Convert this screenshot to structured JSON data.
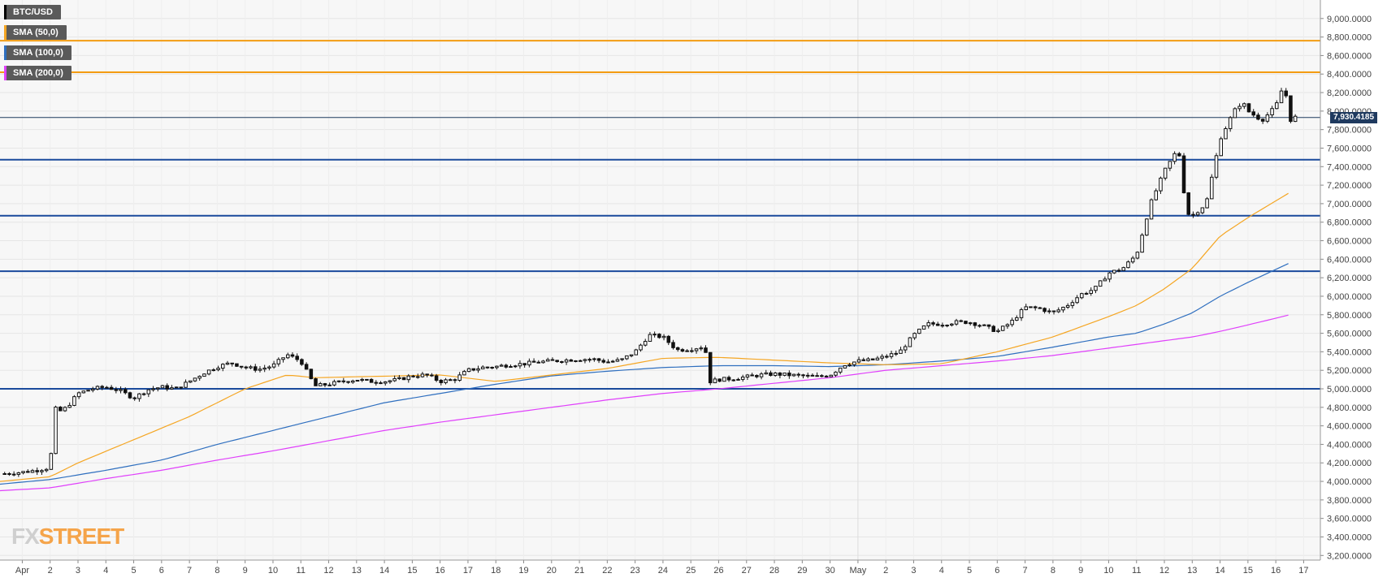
{
  "legend": [
    {
      "label": "BTC/USD",
      "color": "#000000"
    },
    {
      "label": "SMA (50,0)",
      "color": "#f5a623"
    },
    {
      "label": "SMA (100,0)",
      "color": "#2f6fbf"
    },
    {
      "label": "SMA (200,0)",
      "color": "#e040fb"
    }
  ],
  "logo": {
    "fx": "FX",
    "street": "STREET"
  },
  "current_price_label": "7,930.4185",
  "chart_data": {
    "type": "candlestick",
    "title": "",
    "ylim": [
      3150,
      9200
    ],
    "y_ticks": [
      3200,
      3400,
      3600,
      3800,
      4000,
      4200,
      4400,
      4600,
      4800,
      5000,
      5200,
      5400,
      5600,
      5800,
      6000,
      6200,
      6400,
      6600,
      6800,
      7000,
      7200,
      7400,
      7600,
      7800,
      8000,
      8200,
      8400,
      8600,
      8800,
      9000
    ],
    "y_tick_labels": [
      "3,200.0000",
      "3,400.0000",
      "3,600.0000",
      "3,800.0000",
      "4,000.0000",
      "4,200.0000",
      "4,400.0000",
      "4,600.0000",
      "4,800.0000",
      "5,000.0000",
      "5,200.0000",
      "5,400.0000",
      "5,600.0000",
      "5,800.0000",
      "6,000.0000",
      "6,200.0000",
      "6,400.0000",
      "6,600.0000",
      "6,800.0000",
      "7,000.0000",
      "7,200.0000",
      "7,400.0000",
      "7,600.0000",
      "7,800.0000",
      "8,000.0000",
      "8,200.0000",
      "8,400.0000",
      "8,600.0000",
      "8,800.0000",
      "9,000.0000"
    ],
    "x_ticks": [
      {
        "day": 0,
        "label": "Apr"
      },
      {
        "day": 1,
        "label": "2"
      },
      {
        "day": 2,
        "label": "3"
      },
      {
        "day": 3,
        "label": "4"
      },
      {
        "day": 4,
        "label": "5"
      },
      {
        "day": 5,
        "label": "6"
      },
      {
        "day": 6,
        "label": "7"
      },
      {
        "day": 7,
        "label": "8"
      },
      {
        "day": 8,
        "label": "9"
      },
      {
        "day": 9,
        "label": "10"
      },
      {
        "day": 10,
        "label": "11"
      },
      {
        "day": 11,
        "label": "12"
      },
      {
        "day": 12,
        "label": "13"
      },
      {
        "day": 13,
        "label": "14"
      },
      {
        "day": 14,
        "label": "15"
      },
      {
        "day": 15,
        "label": "16"
      },
      {
        "day": 16,
        "label": "17"
      },
      {
        "day": 17,
        "label": "18"
      },
      {
        "day": 18,
        "label": "19"
      },
      {
        "day": 19,
        "label": "20"
      },
      {
        "day": 20,
        "label": "21"
      },
      {
        "day": 21,
        "label": "22"
      },
      {
        "day": 22,
        "label": "23"
      },
      {
        "day": 23,
        "label": "24"
      },
      {
        "day": 24,
        "label": "25"
      },
      {
        "day": 25,
        "label": "26"
      },
      {
        "day": 26,
        "label": "27"
      },
      {
        "day": 27,
        "label": "28"
      },
      {
        "day": 28,
        "label": "29"
      },
      {
        "day": 29,
        "label": "30"
      },
      {
        "day": 30,
        "label": "May"
      },
      {
        "day": 31,
        "label": "2"
      },
      {
        "day": 32,
        "label": "3"
      },
      {
        "day": 33,
        "label": "4"
      },
      {
        "day": 34,
        "label": "5"
      },
      {
        "day": 35,
        "label": "6"
      },
      {
        "day": 36,
        "label": "7"
      },
      {
        "day": 37,
        "label": "8"
      },
      {
        "day": 38,
        "label": "9"
      },
      {
        "day": 39,
        "label": "10"
      },
      {
        "day": 40,
        "label": "11"
      },
      {
        "day": 41,
        "label": "12"
      },
      {
        "day": 42,
        "label": "13"
      },
      {
        "day": 43,
        "label": "14"
      },
      {
        "day": 44,
        "label": "15"
      },
      {
        "day": 45,
        "label": "16"
      },
      {
        "day": 46,
        "label": "17"
      }
    ],
    "x_range_days": [
      -0.8,
      46.6
    ],
    "horizontal_levels": [
      {
        "value": 8760,
        "color": "#f39c12"
      },
      {
        "value": 8420,
        "color": "#f39c12"
      },
      {
        "value": 7475,
        "color": "#1a4a9c"
      },
      {
        "value": 6870,
        "color": "#1a4a9c"
      },
      {
        "value": 6270,
        "color": "#1a4a9c"
      },
      {
        "value": 5000,
        "color": "#1a4a9c"
      }
    ],
    "current_price": 7930.4185,
    "price_path": [
      [
        -0.8,
        4080
      ],
      [
        0,
        4100
      ],
      [
        0.5,
        4120
      ],
      [
        1,
        4150
      ],
      [
        1.15,
        4800
      ],
      [
        1.3,
        4750
      ],
      [
        1.6,
        4800
      ],
      [
        2,
        4950
      ],
      [
        2.5,
        5000
      ],
      [
        3,
        5020
      ],
      [
        3.5,
        4980
      ],
      [
        4,
        4900
      ],
      [
        4.5,
        4990
      ],
      [
        5,
        5020
      ],
      [
        5.5,
        5000
      ],
      [
        6,
        5080
      ],
      [
        6.5,
        5170
      ],
      [
        7,
        5240
      ],
      [
        7.5,
        5280
      ],
      [
        8,
        5230
      ],
      [
        8.5,
        5210
      ],
      [
        9,
        5250
      ],
      [
        9.5,
        5370
      ],
      [
        10,
        5300
      ],
      [
        10.5,
        5030
      ],
      [
        11,
        5050
      ],
      [
        11.5,
        5080
      ],
      [
        12,
        5100
      ],
      [
        12.5,
        5080
      ],
      [
        13,
        5080
      ],
      [
        13.5,
        5100
      ],
      [
        14,
        5140
      ],
      [
        14.5,
        5150
      ],
      [
        15,
        5080
      ],
      [
        15.5,
        5100
      ],
      [
        16,
        5200
      ],
      [
        16.5,
        5230
      ],
      [
        17,
        5240
      ],
      [
        17.5,
        5260
      ],
      [
        18,
        5270
      ],
      [
        18.5,
        5290
      ],
      [
        19,
        5300
      ],
      [
        19.5,
        5310
      ],
      [
        20,
        5320
      ],
      [
        20.5,
        5320
      ],
      [
        21,
        5290
      ],
      [
        21.5,
        5310
      ],
      [
        22,
        5400
      ],
      [
        22.5,
        5580
      ],
      [
        23,
        5560
      ],
      [
        23.5,
        5420
      ],
      [
        24,
        5430
      ],
      [
        24.5,
        5460
      ],
      [
        24.7,
        5080
      ],
      [
        25,
        5100
      ],
      [
        25.5,
        5110
      ],
      [
        26,
        5130
      ],
      [
        26.5,
        5150
      ],
      [
        27,
        5160
      ],
      [
        27.5,
        5150
      ],
      [
        28,
        5140
      ],
      [
        28.5,
        5130
      ],
      [
        29,
        5150
      ],
      [
        29.5,
        5260
      ],
      [
        30,
        5300
      ],
      [
        30.5,
        5310
      ],
      [
        31,
        5350
      ],
      [
        31.5,
        5400
      ],
      [
        32,
        5580
      ],
      [
        32.5,
        5700
      ],
      [
        33,
        5700
      ],
      [
        33.5,
        5720
      ],
      [
        34,
        5720
      ],
      [
        34.5,
        5680
      ],
      [
        35,
        5620
      ],
      [
        35.5,
        5720
      ],
      [
        36,
        5880
      ],
      [
        36.5,
        5870
      ],
      [
        37,
        5820
      ],
      [
        37.5,
        5900
      ],
      [
        38,
        6020
      ],
      [
        38.5,
        6080
      ],
      [
        39,
        6250
      ],
      [
        39.5,
        6300
      ],
      [
        40,
        6450
      ],
      [
        40.5,
        7000
      ],
      [
        41,
        7350
      ],
      [
        41.5,
        7600
      ],
      [
        41.8,
        6900
      ],
      [
        42,
        6870
      ],
      [
        42.5,
        7000
      ],
      [
        43,
        7700
      ],
      [
        43.5,
        8000
      ],
      [
        43.8,
        8100
      ],
      [
        44,
        8000
      ],
      [
        44.5,
        7900
      ],
      [
        45,
        8050
      ],
      [
        45.3,
        8300
      ],
      [
        45.5,
        7900
      ],
      [
        45.8,
        7950
      ]
    ],
    "sma_50": [
      [
        -0.8,
        4000
      ],
      [
        1,
        4050
      ],
      [
        2,
        4200
      ],
      [
        4,
        4450
      ],
      [
        6,
        4700
      ],
      [
        8,
        5000
      ],
      [
        9.5,
        5150
      ],
      [
        10.5,
        5120
      ],
      [
        12,
        5130
      ],
      [
        15,
        5150
      ],
      [
        17,
        5080
      ],
      [
        19,
        5150
      ],
      [
        21,
        5220
      ],
      [
        23,
        5330
      ],
      [
        25,
        5340
      ],
      [
        27,
        5310
      ],
      [
        29,
        5280
      ],
      [
        31,
        5260
      ],
      [
        33,
        5270
      ],
      [
        35,
        5400
      ],
      [
        37,
        5560
      ],
      [
        39,
        5780
      ],
      [
        40,
        5900
      ],
      [
        41,
        6080
      ],
      [
        42,
        6300
      ],
      [
        43,
        6650
      ],
      [
        44,
        6850
      ],
      [
        45.5,
        7120
      ]
    ],
    "sma_100": [
      [
        -0.8,
        3970
      ],
      [
        1,
        4020
      ],
      [
        3,
        4120
      ],
      [
        5,
        4230
      ],
      [
        7,
        4400
      ],
      [
        9,
        4550
      ],
      [
        11,
        4700
      ],
      [
        13,
        4850
      ],
      [
        15,
        4950
      ],
      [
        17,
        5050
      ],
      [
        19,
        5140
      ],
      [
        21,
        5190
      ],
      [
        23,
        5230
      ],
      [
        25,
        5250
      ],
      [
        27,
        5250
      ],
      [
        29,
        5240
      ],
      [
        31,
        5260
      ],
      [
        33,
        5300
      ],
      [
        35,
        5350
      ],
      [
        37,
        5450
      ],
      [
        39,
        5560
      ],
      [
        40,
        5600
      ],
      [
        41,
        5700
      ],
      [
        42,
        5820
      ],
      [
        43,
        6000
      ],
      [
        44,
        6150
      ],
      [
        45.5,
        6360
      ]
    ],
    "sma_200": [
      [
        -0.8,
        3900
      ],
      [
        1,
        3930
      ],
      [
        3,
        4030
      ],
      [
        5,
        4120
      ],
      [
        7,
        4230
      ],
      [
        9,
        4330
      ],
      [
        11,
        4440
      ],
      [
        13,
        4550
      ],
      [
        15,
        4640
      ],
      [
        17,
        4720
      ],
      [
        19,
        4800
      ],
      [
        21,
        4880
      ],
      [
        23,
        4950
      ],
      [
        25,
        5000
      ],
      [
        27,
        5060
      ],
      [
        29,
        5120
      ],
      [
        31,
        5200
      ],
      [
        33,
        5250
      ],
      [
        35,
        5300
      ],
      [
        37,
        5360
      ],
      [
        39,
        5440
      ],
      [
        40,
        5480
      ],
      [
        41,
        5520
      ],
      [
        42,
        5560
      ],
      [
        43,
        5620
      ],
      [
        44,
        5690
      ],
      [
        45.5,
        5800
      ]
    ]
  }
}
